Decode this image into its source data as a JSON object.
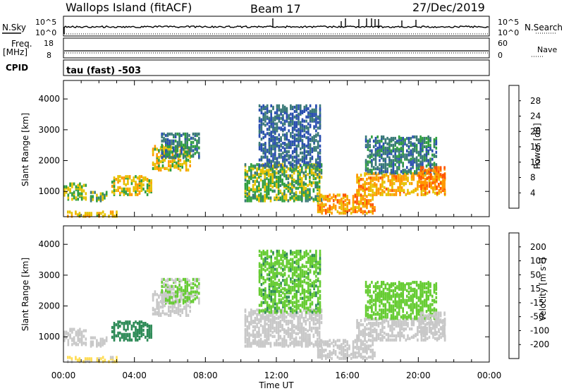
{
  "header": {
    "station": "Wallops Island (fitACF)",
    "beam": "Beam 17",
    "date": "27/Dec/2019"
  },
  "left_labels": {
    "nsky": "N.Sky",
    "freq": "Freq.",
    "freq_unit": "[MHz]",
    "cpid": "CPID"
  },
  "right_labels": {
    "nsearch": "N.Search",
    "nave": "Nave"
  },
  "noise_axis": {
    "left_ticks": [
      "10^5",
      "10^0"
    ],
    "right_ticks": [
      "10^5",
      "10^0"
    ]
  },
  "freq_axis": {
    "left_ticks": [
      "18",
      "8"
    ],
    "right_ticks": [
      "60",
      "0"
    ]
  },
  "cpid_text": "tau (fast) -503",
  "colors": {
    "power": [
      "#0000ff",
      "#2a4fb0",
      "#3a7a78",
      "#2f9e3f",
      "#e6c200",
      "#ff9900",
      "#ff5500",
      "#ee1100"
    ],
    "velocity": [
      "#ff0000",
      "#ff6a00",
      "#ffaa00",
      "#ffdd55",
      "#c8c8c8",
      "#66cc33",
      "#2e8b57",
      "#3a55a8",
      "#0011cc"
    ]
  },
  "chart_data": [
    {
      "type": "heatmap",
      "panel": "power",
      "xlabel": "Time UT",
      "ylabel": "Slant Range [km]",
      "x_ticks": [
        "00:00",
        "04:00",
        "08:00",
        "12:00",
        "16:00",
        "20:00",
        "00:00"
      ],
      "x_range_hours": [
        0,
        24
      ],
      "y_ticks": [
        1000,
        2000,
        3000,
        4000
      ],
      "ylim": [
        180,
        4600
      ],
      "colorbar": {
        "label": "Power [dB]",
        "ticks": [
          4,
          8,
          12,
          16,
          20,
          24,
          28
        ],
        "range": [
          0,
          30
        ]
      },
      "regions": [
        {
          "t": [
            0.0,
            1.3
          ],
          "r": [
            750,
            1250
          ],
          "value": 16
        },
        {
          "t": [
            1.5,
            2.4
          ],
          "r": [
            700,
            1000
          ],
          "value": 13
        },
        {
          "t": [
            0.2,
            3.0
          ],
          "r": [
            200,
            380
          ],
          "value": 19
        },
        {
          "t": [
            2.7,
            5.0
          ],
          "r": [
            900,
            1500
          ],
          "value": 18
        },
        {
          "t": [
            5.0,
            7.2
          ],
          "r": [
            1700,
            2500
          ],
          "value": 18
        },
        {
          "t": [
            5.5,
            7.7
          ],
          "r": [
            2100,
            2900
          ],
          "value": 11
        },
        {
          "t": [
            10.2,
            14.5
          ],
          "r": [
            700,
            1900
          ],
          "value": 15
        },
        {
          "t": [
            14.3,
            17.5
          ],
          "r": [
            300,
            900
          ],
          "value": 22
        },
        {
          "t": [
            16.5,
            21.5
          ],
          "r": [
            900,
            1600
          ],
          "value": 21
        },
        {
          "t": [
            17.0,
            21.0
          ],
          "r": [
            1600,
            2800
          ],
          "value": 10
        },
        {
          "t": [
            11.0,
            14.5
          ],
          "r": [
            1800,
            3800
          ],
          "value": 8
        },
        {
          "t": [
            20.0,
            21.5
          ],
          "r": [
            1100,
            1800
          ],
          "value": 24
        }
      ]
    },
    {
      "type": "heatmap",
      "panel": "velocity",
      "xlabel": "Time UT",
      "ylabel": "Slant Range [km]",
      "x_ticks": [
        "00:00",
        "04:00",
        "08:00",
        "12:00",
        "16:00",
        "20:00",
        "00:00"
      ],
      "x_range_hours": [
        0,
        24
      ],
      "y_ticks": [
        1000,
        2000,
        3000,
        4000
      ],
      "ylim": [
        180,
        4600
      ],
      "colorbar": {
        "label": "Velocity [m s^-1]",
        "ticks": [
          -200,
          -100,
          -50,
          -15,
          15,
          50,
          100,
          200
        ]
      },
      "regions": [
        {
          "t": [
            0.0,
            1.3
          ],
          "r": [
            750,
            1250
          ],
          "value": 0
        },
        {
          "t": [
            1.5,
            2.4
          ],
          "r": [
            700,
            1000
          ],
          "value": 0
        },
        {
          "t": [
            0.2,
            3.0
          ],
          "r": [
            200,
            380
          ],
          "value": -20
        },
        {
          "t": [
            2.7,
            5.0
          ],
          "r": [
            900,
            1500
          ],
          "value": 70
        },
        {
          "t": [
            5.0,
            7.2
          ],
          "r": [
            1700,
            2500
          ],
          "value": 0
        },
        {
          "t": [
            5.5,
            7.7
          ],
          "r": [
            2100,
            2900
          ],
          "value": 20
        },
        {
          "t": [
            10.2,
            14.5
          ],
          "r": [
            700,
            1900
          ],
          "value": 0
        },
        {
          "t": [
            14.3,
            17.5
          ],
          "r": [
            300,
            900
          ],
          "value": 0
        },
        {
          "t": [
            16.5,
            21.5
          ],
          "r": [
            900,
            1600
          ],
          "value": 0
        },
        {
          "t": [
            17.0,
            21.0
          ],
          "r": [
            1600,
            2800
          ],
          "value": 30
        },
        {
          "t": [
            11.0,
            14.5
          ],
          "r": [
            1800,
            3800
          ],
          "value": 40
        },
        {
          "t": [
            20.0,
            21.5
          ],
          "r": [
            1100,
            1800
          ],
          "value": 0
        }
      ]
    }
  ]
}
